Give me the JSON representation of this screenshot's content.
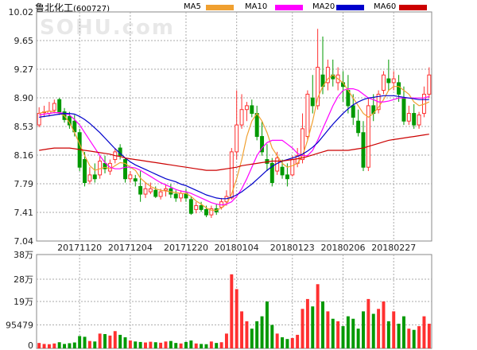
{
  "header": {
    "stock_name": "鲁北化工",
    "stock_code": "(600727)",
    "watermark": "SOHU.com"
  },
  "legend": [
    {
      "label": "MA5",
      "color": "#f0a030"
    },
    {
      "label": "MA10",
      "color": "#ff00ff"
    },
    {
      "label": "MA20",
      "color": "#0000cc"
    },
    {
      "label": "MA60",
      "color": "#cc0000"
    }
  ],
  "colors": {
    "up": "#ff3030",
    "down": "#009900",
    "grid": "#aaaaaa"
  },
  "chart_data": {
    "type": "candlestick",
    "price_axis": {
      "ticks": [
        "10.02",
        "9.65",
        "9.27",
        "8.90",
        "8.53",
        "8.16",
        "7.79",
        "7.41",
        "7.04"
      ],
      "ylim": [
        7.04,
        10.02
      ]
    },
    "date_labels": [
      {
        "text": "20171120",
        "index": 8
      },
      {
        "text": "20171204",
        "index": 18
      },
      {
        "text": "20171220",
        "index": 29
      },
      {
        "text": "20180104",
        "index": 39
      },
      {
        "text": "20180123",
        "index": 50
      },
      {
        "text": "20180206",
        "index": 60
      },
      {
        "text": "20180227",
        "index": 70
      }
    ],
    "volume_axis": {
      "ticks": [
        "38万",
        "28万",
        "19万",
        "95479",
        "0"
      ],
      "ylim": [
        0,
        380000
      ]
    },
    "candles": [
      [
        8.55,
        8.78,
        8.7,
        8.52
      ],
      [
        8.72,
        8.8,
        8.72,
        8.65
      ],
      [
        8.7,
        8.85,
        8.73,
        8.66
      ],
      [
        8.74,
        8.88,
        8.83,
        8.7
      ],
      [
        8.88,
        8.9,
        8.72,
        8.68
      ],
      [
        8.72,
        8.77,
        8.62,
        8.58
      ],
      [
        8.66,
        8.72,
        8.55,
        8.5
      ],
      [
        8.6,
        8.68,
        8.46,
        8.4
      ],
      [
        8.45,
        8.5,
        8.0,
        7.95
      ],
      [
        8.1,
        8.2,
        7.8,
        7.75
      ],
      [
        7.82,
        8.0,
        7.9,
        7.78
      ],
      [
        7.9,
        8.05,
        7.85,
        7.8
      ],
      [
        7.9,
        8.15,
        8.08,
        7.85
      ],
      [
        8.05,
        8.15,
        7.98,
        7.92
      ],
      [
        7.95,
        8.1,
        8.05,
        7.9
      ],
      [
        8.1,
        8.25,
        8.2,
        8.05
      ],
      [
        8.25,
        8.3,
        8.15,
        8.1
      ],
      [
        8.1,
        8.12,
        7.85,
        7.8
      ],
      [
        7.85,
        7.95,
        7.9,
        7.8
      ],
      [
        7.85,
        7.9,
        7.82,
        7.75
      ],
      [
        7.75,
        7.95,
        7.65,
        7.55
      ],
      [
        7.65,
        7.8,
        7.72,
        7.6
      ],
      [
        7.68,
        7.8,
        7.72,
        7.65
      ],
      [
        7.7,
        7.75,
        7.62,
        7.6
      ],
      [
        7.62,
        7.72,
        7.68,
        7.58
      ],
      [
        7.7,
        7.78,
        7.72,
        7.62
      ],
      [
        7.72,
        7.78,
        7.65,
        7.6
      ],
      [
        7.65,
        7.7,
        7.6,
        7.55
      ],
      [
        7.6,
        7.7,
        7.66,
        7.55
      ],
      [
        7.66,
        7.72,
        7.6,
        7.55
      ],
      [
        7.58,
        7.62,
        7.4,
        7.38
      ],
      [
        7.45,
        7.55,
        7.5,
        7.4
      ],
      [
        7.5,
        7.55,
        7.45,
        7.42
      ],
      [
        7.45,
        7.5,
        7.38,
        7.35
      ],
      [
        7.38,
        7.5,
        7.46,
        7.34
      ],
      [
        7.46,
        7.52,
        7.42,
        7.38
      ],
      [
        7.48,
        7.6,
        7.55,
        7.45
      ],
      [
        7.55,
        7.7,
        7.62,
        7.5
      ],
      [
        7.6,
        8.25,
        8.2,
        7.58
      ],
      [
        8.2,
        9.0,
        8.55,
        8.1
      ],
      [
        8.55,
        8.95,
        8.75,
        8.5
      ],
      [
        8.75,
        8.85,
        8.8,
        8.6
      ],
      [
        8.8,
        8.88,
        8.7,
        8.65
      ],
      [
        8.7,
        8.8,
        8.4,
        8.35
      ],
      [
        8.4,
        8.6,
        8.2,
        8.15
      ],
      [
        8.1,
        8.3,
        8.05,
        7.95
      ],
      [
        8.05,
        8.12,
        7.8,
        7.75
      ],
      [
        7.95,
        8.2,
        8.12,
        7.9
      ],
      [
        8.0,
        8.1,
        7.9,
        7.85
      ],
      [
        7.9,
        8.05,
        7.85,
        7.75
      ],
      [
        7.9,
        8.15,
        8.1,
        7.88
      ],
      [
        8.05,
        8.25,
        8.15,
        8.0
      ],
      [
        8.1,
        8.7,
        8.5,
        8.05
      ],
      [
        8.4,
        9.0,
        8.95,
        8.35
      ],
      [
        8.9,
        9.2,
        8.8,
        8.7
      ],
      [
        8.8,
        9.8,
        9.3,
        8.75
      ],
      [
        9.2,
        9.7,
        9.05,
        8.95
      ],
      [
        9.1,
        9.4,
        9.3,
        9.0
      ],
      [
        9.2,
        9.4,
        9.15,
        9.05
      ],
      [
        9.1,
        9.3,
        9.2,
        9.0
      ],
      [
        9.1,
        9.25,
        9.05,
        8.85
      ],
      [
        9.0,
        9.2,
        8.8,
        8.7
      ],
      [
        8.8,
        8.95,
        8.65,
        8.55
      ],
      [
        8.6,
        8.75,
        8.45,
        8.4
      ],
      [
        8.45,
        8.6,
        8.0,
        7.95
      ],
      [
        8.0,
        8.9,
        8.8,
        7.95
      ],
      [
        8.8,
        8.95,
        8.7,
        8.6
      ],
      [
        8.75,
        9.0,
        8.95,
        8.7
      ],
      [
        9.0,
        9.25,
        9.2,
        8.95
      ],
      [
        9.15,
        9.4,
        9.1,
        9.0
      ],
      [
        9.1,
        9.25,
        9.15,
        9.0
      ],
      [
        9.1,
        9.2,
        8.95,
        8.85
      ],
      [
        8.9,
        9.05,
        8.6,
        8.55
      ],
      [
        8.6,
        8.8,
        8.7,
        8.55
      ],
      [
        8.7,
        8.82,
        8.55,
        8.5
      ],
      [
        8.55,
        8.72,
        8.68,
        8.5
      ],
      [
        8.7,
        9.05,
        8.95,
        8.65
      ],
      [
        8.95,
        9.3,
        9.2,
        8.9
      ]
    ],
    "volumes": [
      22000,
      18000,
      17000,
      20000,
      25000,
      18000,
      21000,
      24000,
      50000,
      47000,
      30000,
      28000,
      60000,
      58000,
      52000,
      70000,
      55000,
      45000,
      32000,
      28000,
      26000,
      24000,
      27000,
      25000,
      23000,
      28000,
      30000,
      22000,
      20000,
      26000,
      32000,
      20000,
      18000,
      17000,
      28000,
      22000,
      25000,
      60000,
      300000,
      240000,
      150000,
      110000,
      80000,
      110000,
      130000,
      190000,
      95000,
      60000,
      45000,
      38000,
      42000,
      55000,
      160000,
      200000,
      170000,
      260000,
      190000,
      150000,
      120000,
      110000,
      90000,
      130000,
      120000,
      80000,
      150000,
      200000,
      140000,
      160000,
      190000,
      110000,
      150000,
      100000,
      130000,
      80000,
      75000,
      90000,
      130000,
      100000
    ],
    "ma5": [
      8.7,
      8.72,
      8.73,
      8.72,
      8.7,
      8.67,
      8.58,
      8.45,
      8.3,
      8.15,
      8.02,
      7.96,
      7.98,
      8.0,
      7.98,
      8.02,
      8.06,
      8.05,
      8.0,
      7.96,
      7.86,
      7.8,
      7.75,
      7.72,
      7.7,
      7.69,
      7.68,
      7.67,
      7.66,
      7.66,
      7.62,
      7.56,
      7.52,
      7.47,
      7.44,
      7.44,
      7.47,
      7.52,
      7.65,
      7.85,
      8.1,
      8.4,
      8.6,
      8.7,
      8.6,
      8.45,
      8.25,
      8.15,
      8.05,
      8.0,
      8.02,
      8.05,
      8.15,
      8.35,
      8.6,
      8.9,
      9.05,
      9.15,
      9.2,
      9.15,
      9.1,
      9.0,
      8.9,
      8.8,
      8.7,
      8.65,
      8.7,
      8.78,
      8.88,
      9.0,
      9.05,
      9.05,
      9.0,
      8.95,
      8.85,
      8.8,
      8.82,
      8.85
    ],
    "ma10": [
      8.68,
      8.69,
      8.7,
      8.71,
      8.71,
      8.7,
      8.68,
      8.62,
      8.55,
      8.45,
      8.35,
      8.25,
      8.15,
      8.06,
      8.0,
      7.98,
      7.98,
      8.0,
      8.0,
      7.99,
      7.96,
      7.92,
      7.88,
      7.84,
      7.8,
      7.77,
      7.74,
      7.71,
      7.69,
      7.68,
      7.66,
      7.63,
      7.6,
      7.57,
      7.54,
      7.52,
      7.51,
      7.52,
      7.55,
      7.62,
      7.72,
      7.85,
      8.0,
      8.15,
      8.25,
      8.32,
      8.35,
      8.35,
      8.35,
      8.3,
      8.25,
      8.18,
      8.15,
      8.15,
      8.22,
      8.35,
      8.5,
      8.65,
      8.8,
      8.92,
      9.0,
      9.02,
      9.02,
      9.0,
      8.95,
      8.9,
      8.88,
      8.85,
      8.85,
      8.86,
      8.88,
      8.9,
      8.9,
      8.9,
      8.9,
      8.9,
      8.9,
      8.92
    ],
    "ma20": [
      8.65,
      8.66,
      8.67,
      8.68,
      8.69,
      8.7,
      8.7,
      8.69,
      8.66,
      8.62,
      8.57,
      8.51,
      8.45,
      8.38,
      8.31,
      8.24,
      8.18,
      8.12,
      8.07,
      8.03,
      8.0,
      7.97,
      7.94,
      7.91,
      7.88,
      7.85,
      7.83,
      7.81,
      7.78,
      7.76,
      7.73,
      7.7,
      7.67,
      7.64,
      7.62,
      7.6,
      7.59,
      7.59,
      7.61,
      7.64,
      7.68,
      7.73,
      7.78,
      7.84,
      7.9,
      7.96,
      8.01,
      8.05,
      8.08,
      8.1,
      8.12,
      8.14,
      8.17,
      8.21,
      8.26,
      8.32,
      8.4,
      8.48,
      8.56,
      8.63,
      8.7,
      8.76,
      8.81,
      8.85,
      8.88,
      8.9,
      8.91,
      8.92,
      8.93,
      8.93,
      8.93,
      8.92,
      8.91,
      8.9,
      8.89,
      8.88,
      8.88,
      8.88
    ],
    "ma60": [
      8.22,
      8.23,
      8.24,
      8.25,
      8.25,
      8.25,
      8.25,
      8.24,
      8.23,
      8.22,
      8.21,
      8.2,
      8.19,
      8.18,
      8.17,
      8.15,
      8.14,
      8.12,
      8.11,
      8.1,
      8.09,
      8.08,
      8.07,
      8.06,
      8.05,
      8.04,
      8.03,
      8.02,
      8.01,
      8.0,
      7.99,
      7.98,
      7.97,
      7.96,
      7.96,
      7.96,
      7.97,
      7.98,
      7.99,
      8.0,
      8.02,
      8.03,
      8.04,
      8.05,
      8.06,
      8.07,
      8.08,
      8.08,
      8.08,
      8.09,
      8.1,
      8.11,
      8.12,
      8.14,
      8.16,
      8.18,
      8.2,
      8.22,
      8.22,
      8.22,
      8.22,
      8.22,
      8.23,
      8.24,
      8.25,
      8.27,
      8.29,
      8.31,
      8.33,
      8.35,
      8.36,
      8.37,
      8.38,
      8.39,
      8.4,
      8.41,
      8.42,
      8.43
    ]
  }
}
